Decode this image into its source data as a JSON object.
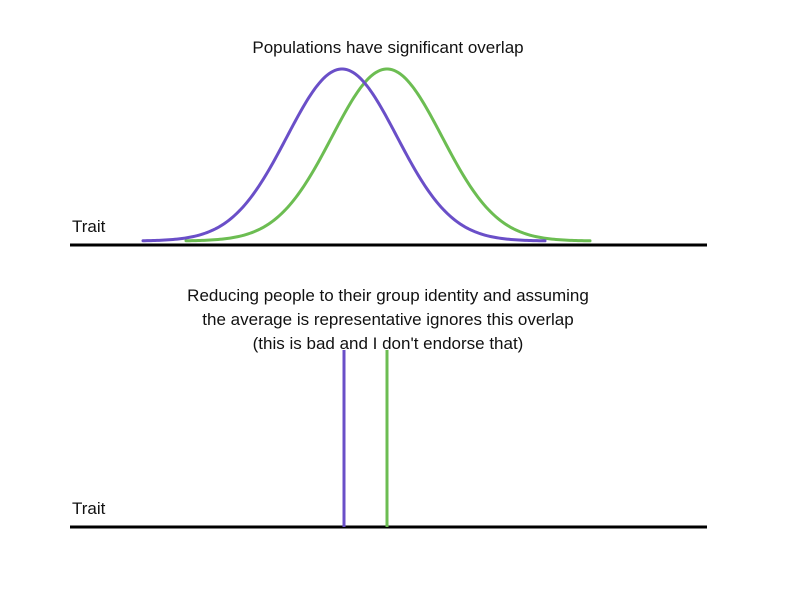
{
  "top_panel": {
    "title": "Populations have significant overlap",
    "axis_label": "Trait",
    "colors": {
      "group_a": "#6a4fc8",
      "group_b": "#6cbd52"
    }
  },
  "bottom_panel": {
    "caption_line1": "Reducing people to their group identity and assuming",
    "caption_line2": "the average is representative ignores this overlap",
    "caption_line3": "(this is bad and I don't endorse that)",
    "axis_label": "Trait"
  }
}
